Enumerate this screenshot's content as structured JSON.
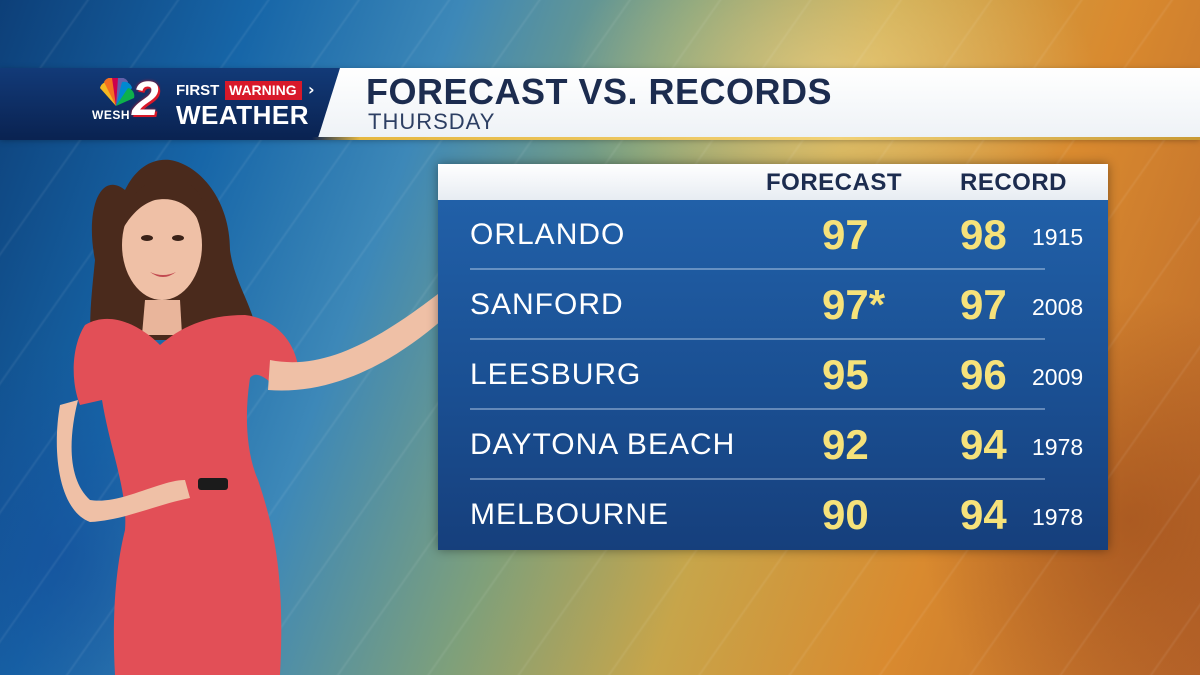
{
  "branding": {
    "station": "WESH",
    "channel_number": "2",
    "first_label": "FIRST",
    "warning_label": "WARNING",
    "weather_label": "WEATHER",
    "warning_color": "#d8192a"
  },
  "header": {
    "title": "FORECAST VS. RECORDS",
    "subtitle": "THURSDAY"
  },
  "table": {
    "columns": {
      "forecast": "FORECAST",
      "record": "RECORD"
    },
    "rows": [
      {
        "city": "ORLANDO",
        "forecast": "97",
        "record": "98",
        "record_year": "1915"
      },
      {
        "city": "SANFORD",
        "forecast": "97*",
        "record": "97",
        "record_year": "2008"
      },
      {
        "city": "LEESBURG",
        "forecast": "95",
        "record": "96",
        "record_year": "2009"
      },
      {
        "city": "DAYTONA BEACH",
        "forecast": "92",
        "record": "94",
        "record_year": "1978"
      },
      {
        "city": "MELBOURNE",
        "forecast": "90",
        "record": "94",
        "record_year": "1978"
      }
    ],
    "value_color": "#f6e27a"
  },
  "presenter": {
    "outfit_color": "#e24f57",
    "hair_color": "#4a2a1c"
  }
}
